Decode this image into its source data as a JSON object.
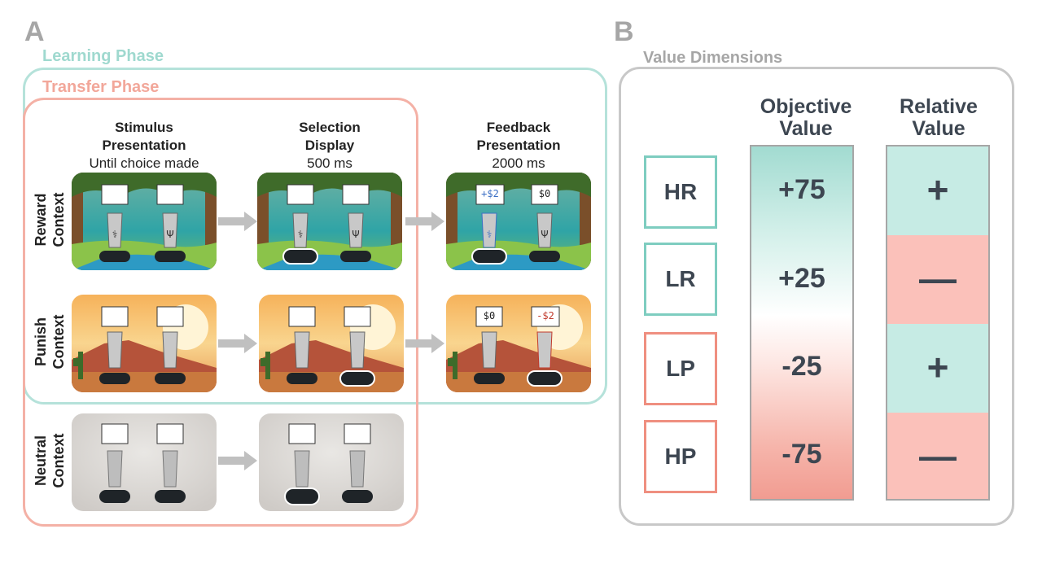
{
  "panel_a": {
    "letter": "A"
  },
  "panel_b": {
    "letter": "B"
  },
  "phases": {
    "learning": "Learning Phase",
    "transfer": "Transfer Phase"
  },
  "columns": [
    {
      "title1": "Stimulus",
      "title2": "Presentation",
      "sub": "Until choice made"
    },
    {
      "title1": "Selection",
      "title2": "Display",
      "sub": "500 ms"
    },
    {
      "title1": "Feedback",
      "title2": "Presentation",
      "sub": "2000 ms"
    }
  ],
  "rows": [
    {
      "line1": "Reward",
      "line2": "Context"
    },
    {
      "line1": "Punish",
      "line2": "Context"
    },
    {
      "line1": "Neutral",
      "line2": "Context"
    }
  ],
  "feedback": {
    "reward_left": "+$2",
    "reward_right": "$0",
    "punish_left": "$0",
    "punish_right": "-$2"
  },
  "value_dimensions": {
    "title": "Value Dimensions",
    "objective_header": [
      "Objective",
      "Value"
    ],
    "relative_header": [
      "Relative",
      "Value"
    ],
    "items": [
      {
        "code": "HR",
        "objective": "+75",
        "relative": "+"
      },
      {
        "code": "LR",
        "objective": "+25",
        "relative": "—"
      },
      {
        "code": "LP",
        "objective": "-25",
        "relative": "+"
      },
      {
        "code": "HP",
        "objective": "-75",
        "relative": "—"
      }
    ]
  },
  "colors": {
    "learning": "#9fd9cf",
    "transfer": "#f2a79a",
    "reward_box": "#7ecdc0",
    "punish_box": "#ef8f80",
    "relative_pos": "#c6ebe4",
    "relative_neg": "#fbc1ba",
    "grey_frame": "#c8c8c8"
  }
}
